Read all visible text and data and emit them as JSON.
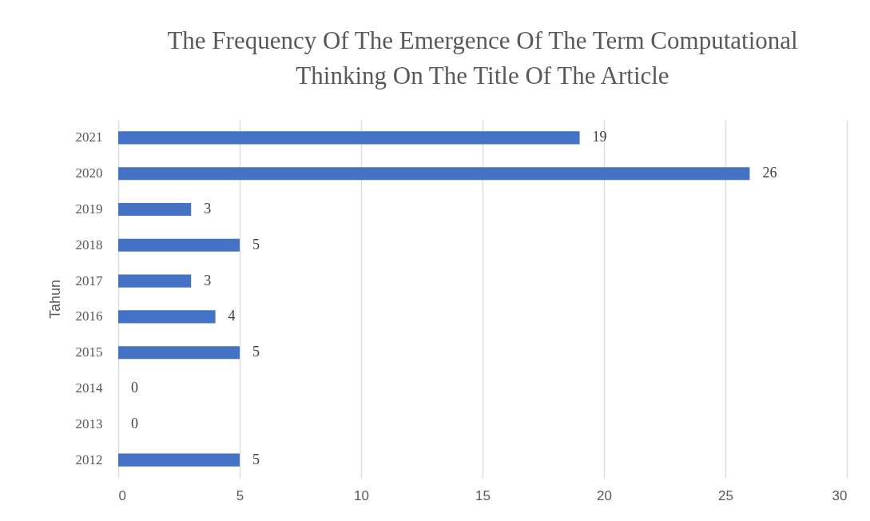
{
  "chart_data": {
    "type": "bar",
    "orientation": "horizontal",
    "title": "The Frequency Of The Emergence Of The Term Computational Thinking On The Title Of The Article",
    "ylabel": "Tahun",
    "categories": [
      "2021",
      "2020",
      "2019",
      "2018",
      "2017",
      "2016",
      "2015",
      "2014",
      "2013",
      "2012"
    ],
    "values": [
      19,
      26,
      3,
      5,
      3,
      4,
      5,
      0,
      0,
      5
    ],
    "color": "#4472c4",
    "xlim": [
      0,
      30
    ],
    "xticks": [
      0,
      5,
      10,
      15,
      20,
      25,
      30
    ],
    "grid": "x",
    "data_labels": true
  }
}
